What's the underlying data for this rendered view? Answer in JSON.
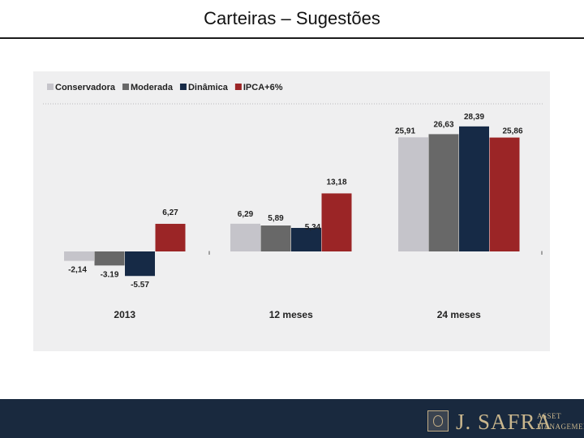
{
  "page": {
    "title": "Carteiras – Sugestões"
  },
  "chart_data": {
    "type": "bar",
    "title": "",
    "xlabel": "",
    "ylabel": "",
    "ylim": [
      -8,
      32
    ],
    "grid": false,
    "legend": "top-left",
    "categories": [
      "2013",
      "12 meses",
      "24 meses"
    ],
    "series": [
      {
        "name": "Conservadora",
        "color": "#c5c4ca",
        "values": [
          -2.14,
          6.29,
          25.91
        ],
        "labels": [
          "-2,14",
          "6,29",
          "25,91"
        ]
      },
      {
        "name": "Moderada",
        "color": "#686868",
        "values": [
          -3.19,
          5.89,
          26.63
        ],
        "labels": [
          "-3.19",
          "5,89",
          "26,63"
        ]
      },
      {
        "name": "Dinâmica",
        "color": "#162a46",
        "values": [
          -5.57,
          5.34,
          28.39
        ],
        "labels": [
          "-5.57",
          "5,34",
          "28,39"
        ]
      },
      {
        "name": "IPCA+6%",
        "color": "#9b2526",
        "values": [
          6.27,
          13.18,
          25.86
        ],
        "labels": [
          "6,27",
          "13,18",
          "25,86"
        ]
      }
    ]
  },
  "footer": {
    "brand": "J. SAFRA",
    "sub_line1": "ASSET",
    "sub_line2": "MANAGEMENT",
    "emblem_icon": "crest-icon"
  }
}
